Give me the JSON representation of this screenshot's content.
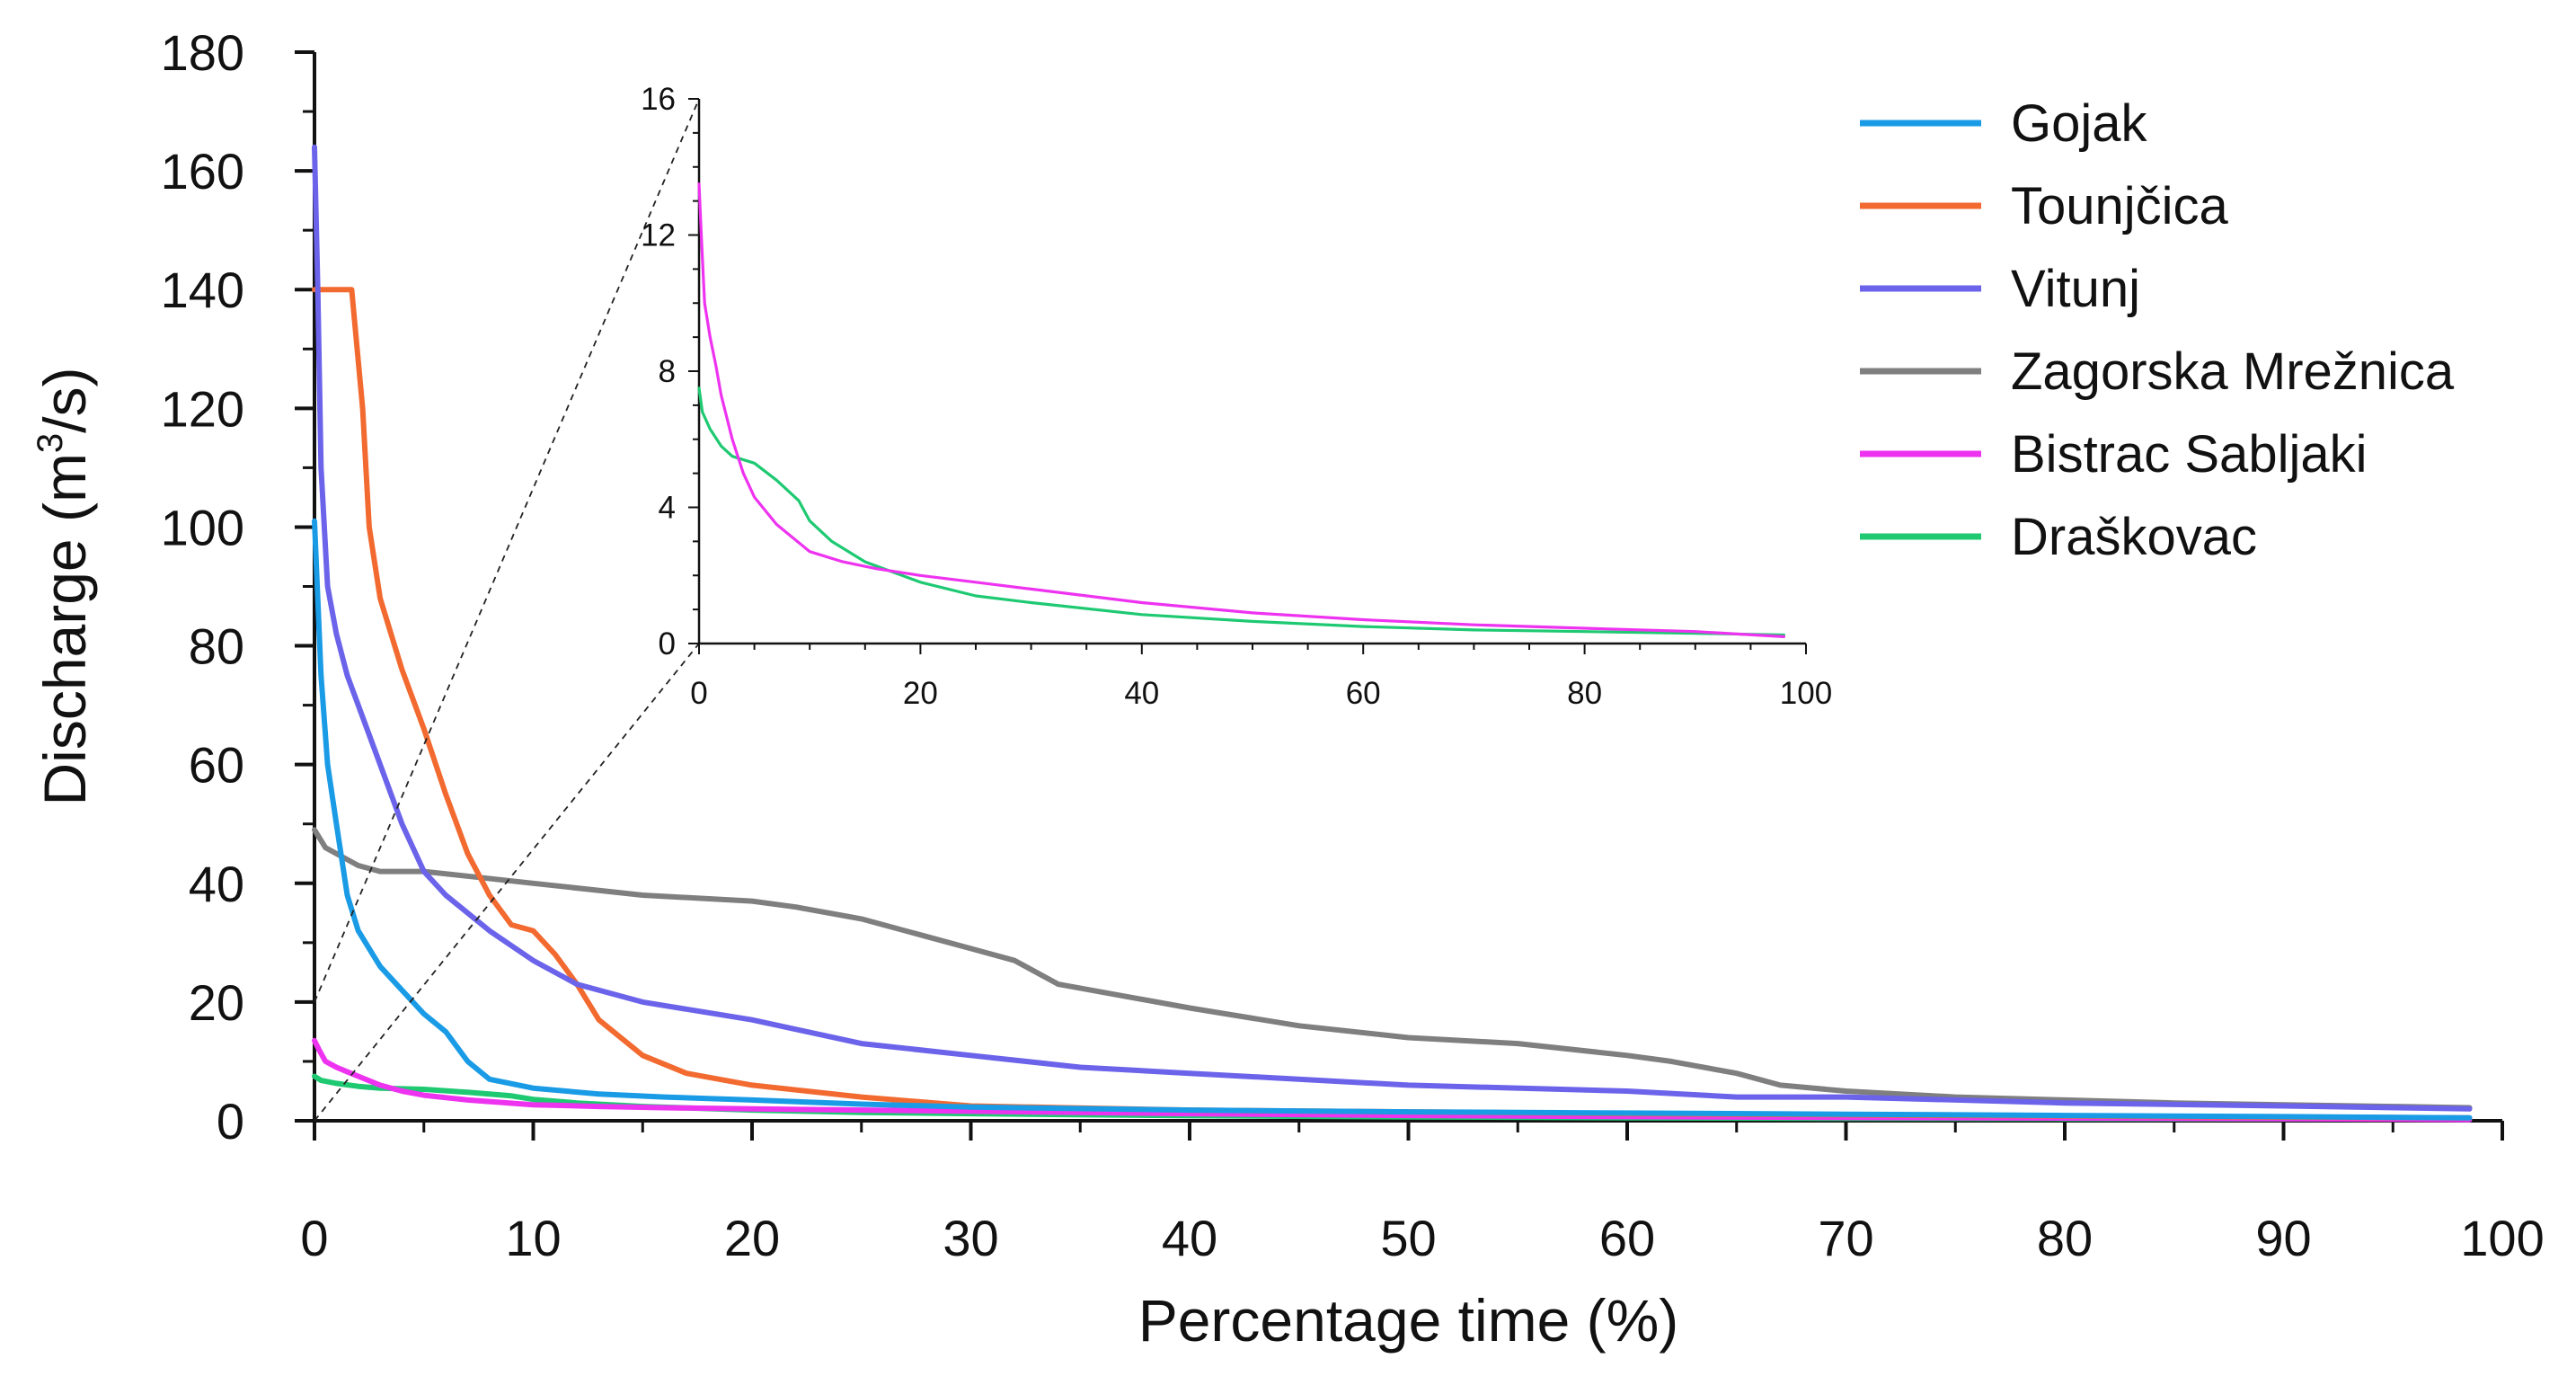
{
  "colors": {
    "Gojak": "#1a9be6",
    "Tounjcica": "#f26a30",
    "Vitunj": "#6b63ea",
    "Zagorska": "#7f7f7f",
    "Bistrac": "#ee33f0",
    "Draskovac": "#1ec972"
  },
  "chart_data": [
    {
      "id": "main",
      "type": "line",
      "title": "",
      "xlabel": "Percentage time (%)",
      "ylabel_parts": [
        "Discharge (m",
        "3",
        "/s)"
      ],
      "xlim": [
        0,
        100
      ],
      "ylim": [
        0,
        180
      ],
      "xticks": [
        0,
        10,
        20,
        30,
        40,
        50,
        60,
        70,
        80,
        90,
        100
      ],
      "yticks": [
        0,
        20,
        40,
        60,
        80,
        100,
        120,
        140,
        160,
        180
      ],
      "grid": false,
      "legend_position": "top-right",
      "series": [
        {
          "name": "Gojak",
          "color": "#1a9be6",
          "x": [
            0,
            0.3,
            0.6,
            1,
            1.5,
            2,
            3,
            4,
            5,
            6,
            7,
            8,
            10,
            13,
            16,
            20,
            25,
            30,
            40,
            50,
            60,
            70,
            80,
            90,
            98.5
          ],
          "y": [
            101,
            75,
            60,
            50,
            38,
            32,
            26,
            22,
            18,
            15,
            10,
            7,
            5.5,
            4.5,
            4,
            3.5,
            2.8,
            2.3,
            1.8,
            1.5,
            1.3,
            1.1,
            0.9,
            0.7,
            0.5
          ]
        },
        {
          "name": "Tounjčica",
          "color": "#f26a30",
          "x": [
            0,
            1.7,
            2.2,
            2.5,
            3,
            3.5,
            4,
            5,
            6,
            7,
            8,
            9,
            10,
            11,
            12,
            13,
            15,
            17,
            20,
            25,
            30,
            40,
            50,
            60,
            70,
            80,
            90,
            98.5
          ],
          "y": [
            140,
            140,
            120,
            100,
            88,
            82,
            76,
            66,
            55,
            45,
            38,
            33,
            32,
            28,
            23,
            17,
            11,
            8,
            6,
            4,
            2.5,
            1.8,
            1.5,
            1.2,
            1,
            0.8,
            0.6,
            0.5
          ]
        },
        {
          "name": "Vitunj",
          "color": "#6b63ea",
          "x": [
            0,
            0.15,
            0.3,
            0.6,
            1,
            1.5,
            2,
            3,
            4,
            5,
            6,
            8,
            10,
            12,
            15,
            20,
            25,
            30,
            35,
            40,
            50,
            60,
            65,
            70,
            80,
            90,
            98.5
          ],
          "y": [
            164,
            140,
            110,
            90,
            82,
            75,
            70,
            60,
            50,
            42,
            38,
            32,
            27,
            23,
            20,
            17,
            13,
            11,
            9,
            8,
            6,
            5,
            4,
            4,
            3,
            2.5,
            2
          ]
        },
        {
          "name": "Zagorska Mrežnica",
          "color": "#7f7f7f",
          "x": [
            0,
            0.5,
            1,
            2,
            3,
            5,
            10,
            15,
            20,
            22,
            25,
            28,
            30,
            32,
            34,
            37,
            40,
            45,
            50,
            55,
            60,
            62,
            65,
            67,
            70,
            75,
            80,
            85,
            90,
            95,
            98.5
          ],
          "y": [
            49,
            46,
            45,
            43,
            42,
            42,
            40,
            38,
            37,
            36,
            34,
            31,
            29,
            27,
            23,
            21,
            19,
            16,
            14,
            13,
            11,
            10,
            8,
            6,
            5,
            4,
            3.5,
            3,
            2.7,
            2.4,
            2.2
          ]
        },
        {
          "name": "Bistrac Sabljaki",
          "color": "#ee33f0",
          "x": [
            0,
            0.2,
            0.5,
            1,
            2,
            3,
            4,
            5,
            7,
            10,
            13,
            16,
            20,
            25,
            30,
            40,
            50,
            60,
            70,
            80,
            90,
            98.5
          ],
          "y": [
            13.5,
            12,
            10,
            9,
            7.5,
            6,
            5,
            4.3,
            3.5,
            2.7,
            2.4,
            2.2,
            2,
            1.8,
            1.6,
            1.2,
            0.9,
            0.7,
            0.55,
            0.45,
            0.35,
            0.2
          ]
        },
        {
          "name": "Draškovac",
          "color": "#1ec972",
          "x": [
            0,
            0.3,
            1,
            2,
            3,
            5,
            7,
            9,
            10,
            12,
            15,
            20,
            25,
            30,
            40,
            50,
            60,
            70,
            80,
            90,
            98.5
          ],
          "y": [
            7.5,
            6.8,
            6.3,
            5.8,
            5.5,
            5.3,
            4.8,
            4.2,
            3.6,
            3,
            2.4,
            1.8,
            1.4,
            1.2,
            0.85,
            0.65,
            0.5,
            0.4,
            0.35,
            0.3,
            0.25
          ]
        }
      ]
    },
    {
      "id": "inset",
      "type": "line",
      "title": "",
      "xlabel": "",
      "ylabel": "",
      "xlim": [
        0,
        100
      ],
      "ylim": [
        0,
        16
      ],
      "xticks": [
        0,
        20,
        40,
        60,
        80,
        100
      ],
      "yticks": [
        0,
        4,
        8,
        12,
        16
      ],
      "grid": false,
      "annotations": [
        "zoom-in of main chart for x 0–100, y 0–20 (dashed guide lines)"
      ],
      "series": [
        {
          "name": "Bistrac Sabljaki",
          "color": "#ee33f0",
          "x": [
            0,
            0.2,
            0.5,
            1,
            1.5,
            2,
            3,
            4,
            5,
            7,
            10,
            13,
            16,
            20,
            25,
            30,
            40,
            50,
            60,
            70,
            80,
            90,
            98
          ],
          "y": [
            13.5,
            12,
            10,
            9,
            8.2,
            7.3,
            6,
            5,
            4.3,
            3.5,
            2.7,
            2.4,
            2.2,
            2,
            1.8,
            1.6,
            1.2,
            0.9,
            0.7,
            0.55,
            0.45,
            0.35,
            0.2
          ]
        },
        {
          "name": "Draškovac",
          "color": "#1ec972",
          "x": [
            0,
            0.3,
            1,
            2,
            3,
            5,
            7,
            9,
            10,
            12,
            15,
            20,
            25,
            30,
            40,
            50,
            60,
            70,
            80,
            90,
            98
          ],
          "y": [
            7.5,
            6.8,
            6.3,
            5.8,
            5.5,
            5.3,
            4.8,
            4.2,
            3.6,
            3,
            2.4,
            1.8,
            1.4,
            1.2,
            0.85,
            0.65,
            0.5,
            0.4,
            0.35,
            0.3,
            0.25
          ]
        }
      ]
    }
  ]
}
